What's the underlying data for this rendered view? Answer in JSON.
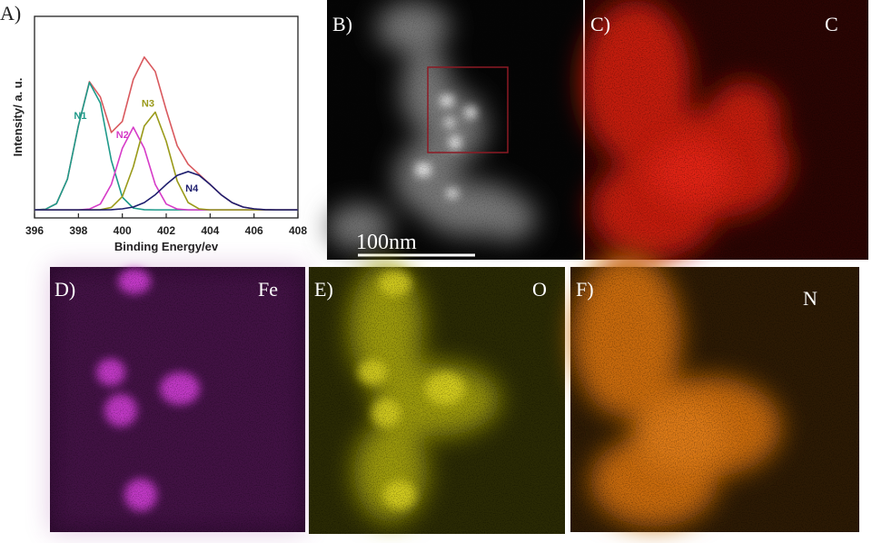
{
  "chart_data": {
    "type": "line",
    "label": "A)",
    "x_label": "Binding Energy/ev",
    "y_label": "Intensity/ a. u.",
    "x": [
      396,
      396.5,
      397,
      397.5,
      398,
      398.5,
      399,
      399.5,
      400,
      400.5,
      401,
      401.5,
      402,
      402.5,
      403,
      403.5,
      404,
      404.5,
      405,
      405.5,
      406,
      406.5,
      407,
      407.5,
      408
    ],
    "xlim": [
      396,
      408
    ],
    "xticks": [
      396,
      398,
      400,
      402,
      404,
      406,
      408
    ],
    "ylim": [
      0,
      100
    ],
    "series": [
      {
        "color": "#d9595e",
        "values": [
          4,
          4.3,
          7.1,
          19.3,
          45.8,
          67.6,
          60,
          42.4,
          47.9,
          68.7,
          79.8,
          72.6,
          53.5,
          35.8,
          26.6,
          21.6,
          16.6,
          11.5,
          7.6,
          5.4,
          4.5,
          4.1,
          4,
          4,
          4
        ]
      },
      {
        "name": "N1",
        "color": "#1f9a8a",
        "values": [
          4,
          4.3,
          7.1,
          19.3,
          45.8,
          67.2,
          57,
          28.5,
          10.3,
          4.9,
          4.1,
          4,
          4,
          4,
          4,
          4,
          4,
          4,
          4,
          4,
          4,
          4,
          4,
          4,
          4
        ]
      },
      {
        "name": "N2",
        "color": "#d63cc8",
        "values": [
          4,
          4,
          4,
          4,
          4,
          4.4,
          6.9,
          16.6,
          34.5,
          45,
          34.5,
          16.6,
          6.9,
          4.4,
          4,
          4,
          4,
          4,
          4,
          4,
          4,
          4,
          4,
          4,
          4
        ]
      },
      {
        "name": "N3",
        "color": "#9a9a1a",
        "values": [
          4,
          4,
          4,
          4,
          4,
          4,
          4.1,
          5.2,
          10.6,
          25.4,
          45.6,
          52.5,
          38,
          18.3,
          7.6,
          4.5,
          4,
          4,
          4,
          4,
          4,
          4,
          4,
          4,
          4
        ]
      },
      {
        "name": "N4",
        "color": "#1e1e6e",
        "values": [
          4,
          4,
          4,
          4,
          4,
          4,
          4,
          4.1,
          4.5,
          5.4,
          7.6,
          11.5,
          16.6,
          21.1,
          23,
          21.1,
          16.6,
          11.5,
          7.6,
          5.4,
          4.5,
          4.1,
          4,
          4,
          4
        ]
      }
    ]
  },
  "images": [
    {
      "label": "B)",
      "scale_bar": "100nm"
    },
    {
      "label": "C)",
      "element": "C"
    },
    {
      "label": "D)",
      "element": "Fe"
    },
    {
      "label": "E)",
      "element": "O"
    },
    {
      "label": "F)",
      "element": "N"
    }
  ]
}
